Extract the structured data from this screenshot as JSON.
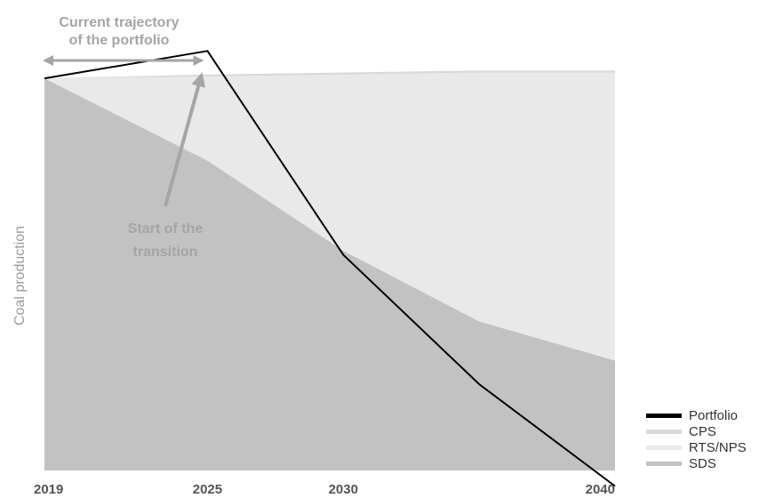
{
  "chart_data": {
    "type": "area",
    "ylabel": "Coal production",
    "x_ticks": [
      2019,
      2025,
      2030,
      2040
    ],
    "x_range": [
      2019,
      2040
    ],
    "y_range": [
      0,
      120
    ],
    "series": [
      {
        "name": "CPS",
        "kind": "area",
        "x": [
          2019,
          2025,
          2030,
          2035,
          2040
        ],
        "values": [
          100,
          101,
          101.5,
          102,
          102
        ]
      },
      {
        "name": "RTS/NPS",
        "kind": "area",
        "x": [
          2019,
          2025,
          2030,
          2035,
          2040
        ],
        "values": [
          100,
          100.5,
          101,
          101.5,
          101.5
        ]
      },
      {
        "name": "SDS",
        "kind": "area",
        "x": [
          2019,
          2025,
          2030,
          2035,
          2040
        ],
        "values": [
          100,
          79,
          56,
          38,
          28
        ]
      },
      {
        "name": "Portfolio",
        "kind": "line",
        "x": [
          2019,
          2025,
          2030,
          2035,
          2040
        ],
        "values": [
          100,
          107,
          55,
          22,
          -4
        ]
      }
    ],
    "annotations": [
      {
        "text": [
          "Current trajectory",
          "of the portfolio"
        ],
        "type": "double-arrow",
        "from_x": 2019,
        "to_x": 2025
      },
      {
        "text": [
          "Start of the",
          "transition"
        ],
        "type": "arrow",
        "points_to": {
          "x": 2025,
          "y": 103
        }
      }
    ],
    "legend_position": "bottom-right",
    "grid": false,
    "colors": {
      "Portfolio": "#000000",
      "CPS": "#d9d9d9",
      "RTS/NPS": "#e9e9e9",
      "SDS": "#c2c2c2",
      "annotation": "#a5a5a5",
      "axis_text": "#555555"
    }
  }
}
